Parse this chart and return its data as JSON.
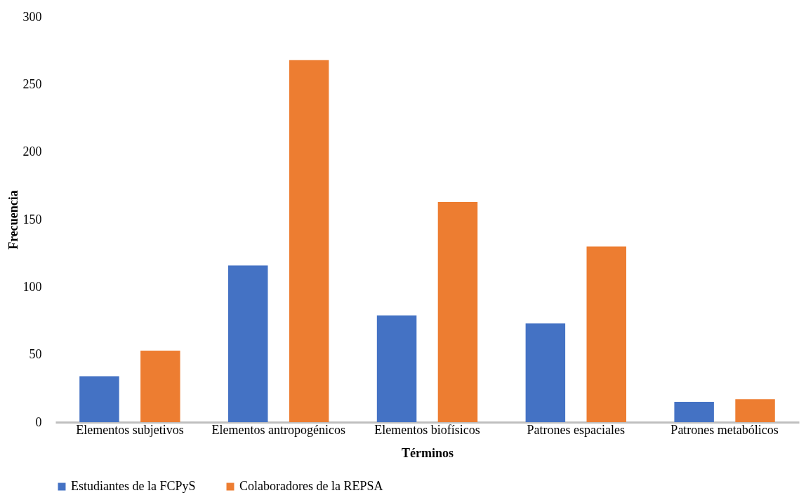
{
  "chart_data": {
    "type": "bar",
    "xlabel": "Términos",
    "ylabel": "Frecuencia",
    "categories": [
      "Elementos subjetivos",
      "Elementos antropogénicos",
      "Elementos biofísicos",
      "Patrones espaciales",
      "Patrones metabólicos"
    ],
    "series": [
      {
        "name": "Estudiantes de la FCPyS",
        "color": "#4472c4",
        "values": [
          34,
          116,
          79,
          73,
          15
        ]
      },
      {
        "name": "Colaboradores de la REPSA",
        "color": "#ed7d31",
        "values": [
          53,
          268,
          163,
          130,
          17
        ]
      }
    ],
    "ylim": [
      0,
      300
    ],
    "yticks": [
      0,
      50,
      100,
      150,
      200,
      250,
      300
    ],
    "grid": false,
    "legend": "bottom"
  }
}
